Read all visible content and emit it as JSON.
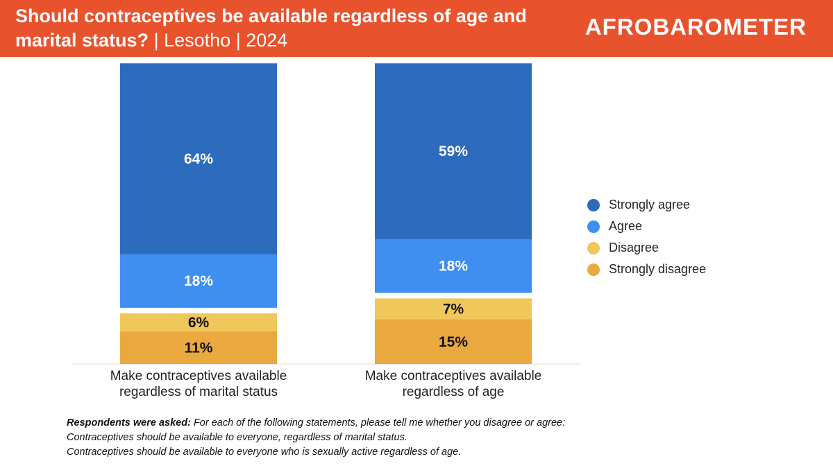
{
  "header": {
    "title_main": "Should contraceptives be available regardless of age and marital status?",
    "separator": "|",
    "country": "Lesotho",
    "year": "2024",
    "logo_text": "AFROBAROMETER"
  },
  "colors": {
    "header_bg": "#e8522c",
    "strongly_agree": "#2d6bbd",
    "agree": "#3f8ff0",
    "disagree": "#f0c75a",
    "strongly_disagree": "#eaa93f"
  },
  "chart_data": {
    "type": "bar",
    "stacked": true,
    "categories": [
      "Make contraceptives available regardless of marital status",
      "Make contraceptives available regardless of age"
    ],
    "category_label_lines": [
      [
        "Make contraceptives available",
        "regardless of marital status"
      ],
      [
        "Make contraceptives available",
        "regardless of age"
      ]
    ],
    "series": [
      {
        "name": "Strongly disagree",
        "values": [
          11,
          15
        ],
        "labels": [
          "11%",
          "15%"
        ],
        "color": "#eaa93f"
      },
      {
        "name": "Disagree",
        "values": [
          6,
          7
        ],
        "labels": [
          "6%",
          "7%"
        ],
        "color": "#f0c75a"
      },
      {
        "name": "Agree",
        "values": [
          18,
          18
        ],
        "labels": [
          "18%",
          "18%"
        ],
        "color": "#3f8ff0"
      },
      {
        "name": "Strongly agree",
        "values": [
          64,
          59
        ],
        "labels": [
          "64%",
          "59%"
        ],
        "color": "#2d6bbd"
      }
    ],
    "ylim": [
      0,
      100
    ],
    "legend_position": "right",
    "legend_order": [
      "Strongly agree",
      "Agree",
      "Disagree",
      "Strongly disagree"
    ],
    "grid": false
  },
  "footnote": {
    "label": "Respondents were asked:",
    "question": "For each of the following statements, please tell me whether you disagree or agree:",
    "statement_1": "Contraceptives should be available to everyone, regardless of marital status.",
    "statement_2": "Contraceptives should be available to everyone who is sexually active regardless of age."
  }
}
